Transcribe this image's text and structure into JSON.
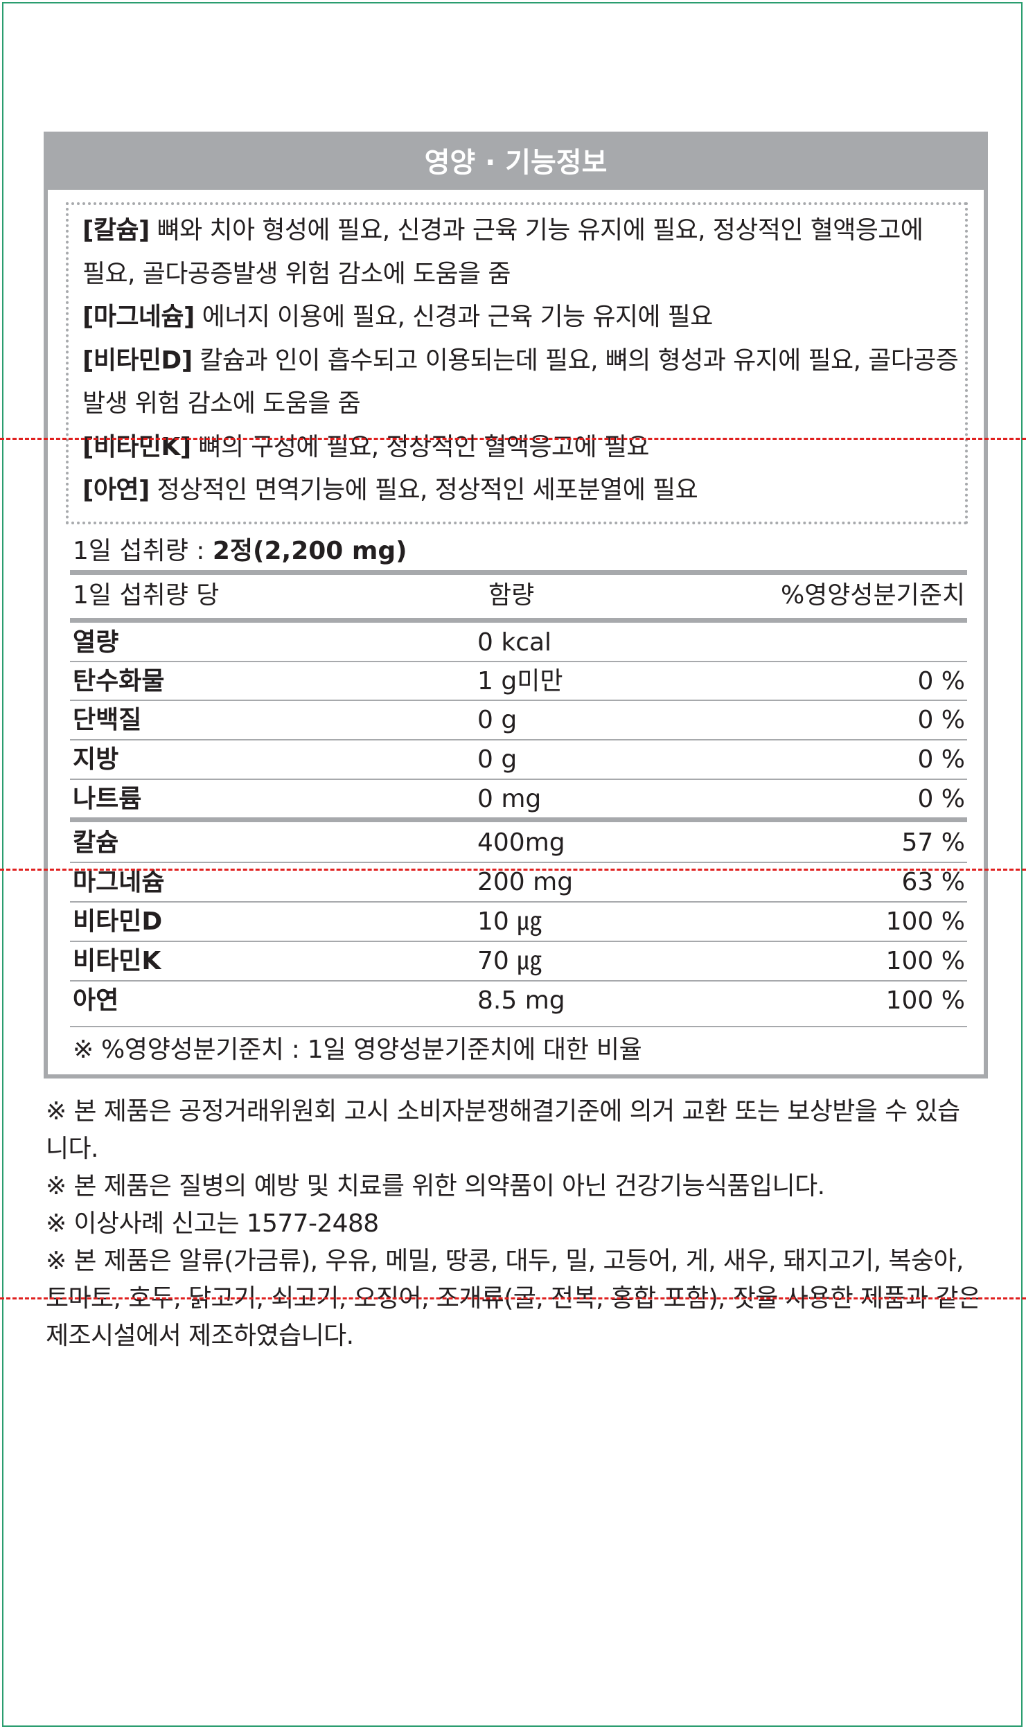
{
  "panel": {
    "title": "영양 · 기능정보",
    "functional_info": [
      {
        "tag": "[칼슘]",
        "text": " 뼈와 치아 형성에 필요, 신경과 근육 기능 유지에 필요, 정상적인 혈액응고에"
      },
      {
        "tag": "",
        "text": "필요, 골다공증발생 위험 감소에 도움을 줌"
      },
      {
        "tag": "[마그네슘]",
        "text": " 에너지 이용에 필요, 신경과 근육 기능 유지에 필요"
      },
      {
        "tag": "[비타민D]",
        "text": " 칼슘과 인이 흡수되고 이용되는데 필요, 뼈의 형성과 유지에 필요, 골다공증"
      },
      {
        "tag": "",
        "text": "발생 위험 감소에 도움을 줌"
      },
      {
        "tag": "[비타민K]",
        "text": " 뼈의 구성에 필요, 정상적인 혈액응고에 필요"
      },
      {
        "tag": "[아연]",
        "text": " 정상적인 면역기능에 필요, 정상적인 세포분열에 필요"
      }
    ],
    "serving": {
      "label": "1일 섭취량 : ",
      "value": "2정(2,200 mg)"
    },
    "table": {
      "headers": {
        "per": "1일 섭취량 당",
        "amount": "함량",
        "percent": "%영양성분기준치"
      },
      "rows": [
        {
          "name": "열량",
          "amount": "0 kcal",
          "percent": ""
        },
        {
          "name": "탄수화물",
          "amount": "1 g미만",
          "percent": "0 %"
        },
        {
          "name": "단백질",
          "amount": "0 g",
          "percent": "0 %"
        },
        {
          "name": "지방",
          "amount": "0 g",
          "percent": "0 %"
        },
        {
          "name": "나트륨",
          "amount": "0 mg",
          "percent": "0 %"
        },
        {
          "name": "칼슘",
          "amount": "400mg",
          "percent": "57 %"
        },
        {
          "name": "마그네슘",
          "amount": "200 mg",
          "percent": "63 %"
        },
        {
          "name": "비타민D",
          "amount": "10 ㎍",
          "percent": "100 %"
        },
        {
          "name": "비타민K",
          "amount": "70 ㎍",
          "percent": "100 %"
        },
        {
          "name": "아연",
          "amount": "8.5 mg",
          "percent": "100 %"
        }
      ],
      "footnote": "※ %영양성분기준치 : 1일 영양성분기준치에 대한 비율"
    }
  },
  "notes": [
    "※ 본 제품은 공정거래위원회 고시 소비자분쟁해결기준에 의거 교환 또는 보상받을 수 있습",
    "니다.",
    "※ 본 제품은 질병의 예방 및 치료를 위한 의약품이 아닌 건강기능식품입니다.",
    "※ 이상사례 신고는 1577-2488",
    "※ 본 제품은 알류(가금류), 우유, 메밀, 땅콩, 대두, 밀, 고등어, 게, 새우, 돼지고기, 복숭아,",
    "토마토, 호두, 닭고기, 쇠고기, 오징어, 조개류(굴, 전복, 홍합 포함), 잣을 사용한 제품과 같은",
    "제조시설에서 제조하였습니다."
  ],
  "colors": {
    "frame": "#2a9d6f",
    "panel_gray": "#a7a9ac",
    "text": "#231f20",
    "guide_red": "#e0201f"
  }
}
